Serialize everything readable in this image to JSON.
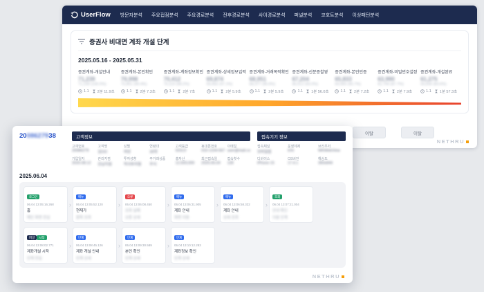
{
  "colors": {
    "navy": "#1d2b4f",
    "accent-blue": "#2450c8",
    "green": "#22a06b",
    "blue": "#2f6bed",
    "red": "#e5484d",
    "orange": "#f59e0b"
  },
  "icons": {
    "chevron_right": "›"
  },
  "app": {
    "logo": "UserFlow",
    "nav": [
      {
        "label": "방문자분석"
      },
      {
        "label": "주요접점분석"
      },
      {
        "label": "주요경로분석"
      },
      {
        "label": "전후경로분석"
      },
      {
        "label": "사이경로분석"
      },
      {
        "label": "퍼널분석"
      },
      {
        "label": "코호트분석"
      },
      {
        "label": "이상패턴분석"
      }
    ]
  },
  "funnel": {
    "title": "증권사 비대면 계좌 개설 단계",
    "date_range": "2025.05.16 - 2025.05.31",
    "gradient": [
      "#ffd84d",
      "#ffa62b",
      "#e8432e"
    ],
    "steps": [
      {
        "label": "증권계좌-개설안내",
        "value": "71,239",
        "sub": "71,239 (100.0%)",
        "avg": "1.1",
        "duration": "2분 11.9초"
      },
      {
        "label": "증권계좌-본인확인",
        "value": "70,998",
        "sub": "70,851 (99.4%)",
        "avg": "1.1",
        "duration": "2분 7.3초"
      },
      {
        "label": "증권계좌-계좌정보확인",
        "value": "70,412",
        "sub": "70,119 (98.2%)",
        "avg": "1.1",
        "duration": "2분 7초"
      },
      {
        "label": "증권계좌-상세정보입력",
        "value": "69,874",
        "sub": "69,402 (97.1%)",
        "avg": "1.1",
        "duration": "2분 5.9초"
      },
      {
        "label": "증권계좌-거래목적확인",
        "value": "68,951",
        "sub": "68,377 (95.6%)",
        "avg": "1.1",
        "duration": "2분 5.9초"
      },
      {
        "label": "증권계좌-신분증촬영",
        "value": "67,204",
        "sub": "66,512 (93.0%)",
        "avg": "1.1",
        "duration": "1분 56.0초"
      },
      {
        "label": "증권계좌-본인인증",
        "value": "65,833",
        "sub": "64,905 (90.7%)",
        "avg": "1.1",
        "duration": "2분 7.2초"
      },
      {
        "label": "증권계좌-비밀번호설정",
        "value": "63,990",
        "sub": "62,744 (87.7%)",
        "avg": "1.1",
        "duration": "2분 7.9초"
      },
      {
        "label": "증권계좌-개설완료",
        "value": "61,275",
        "sub": "59,830 (83.6%)",
        "avg": "1.1",
        "duration": "1분 57.3초"
      }
    ],
    "exit_buttons": [
      "이탈",
      "이탈"
    ],
    "watermark": "NETHRU"
  },
  "detail": {
    "customer_id": {
      "prefix": "20",
      "masked": "086279",
      "suffix": "38"
    },
    "customer": {
      "title": "고객정보",
      "fields": [
        {
          "label": "고객번호",
          "value": "20086279"
        },
        {
          "label": "고객명",
          "value": "김OO"
        },
        {
          "label": "성별",
          "value": "여성"
        },
        {
          "label": "연령대",
          "value": "30대"
        },
        {
          "label": "고객등급",
          "value": "GOLD"
        },
        {
          "label": "휴대폰번호",
          "value": "010-1234-5678"
        },
        {
          "label": "이메일",
          "value": "user@mail.com"
        },
        {
          "label": "가입일자",
          "value": "2020.08.12"
        },
        {
          "label": "관리지점",
          "value": "강남지점"
        },
        {
          "label": "투자성향",
          "value": "적극투자형"
        },
        {
          "label": "주거래상품",
          "value": "주식"
        },
        {
          "label": "총자산",
          "value": "12,500,000"
        },
        {
          "label": "최근접속일",
          "value": "2025.06.04"
        },
        {
          "label": "접속횟수",
          "value": "128"
        }
      ]
    },
    "device": {
      "title": "접속기기 정보",
      "fields": [
        {
          "label": "접속채널",
          "value": "모바일앱"
        },
        {
          "label": "운영체제",
          "value": "iOS"
        },
        {
          "label": "브라우저",
          "value": "WKWebView"
        },
        {
          "label": "디바이스",
          "value": "iPhone 15"
        },
        {
          "label": "OS버전",
          "value": "17.4.1"
        },
        {
          "label": "해상도",
          "value": "390x844"
        }
      ]
    },
    "date": "2025.06.04",
    "timeline": {
      "rows": [
        [
          {
            "badges": [
              {
                "label": "로그인",
                "color": "green"
              }
            ],
            "time": "06.04 13:05:16.268",
            "lines": [
              {
                "text": "홈",
                "blur": false
              },
              {
                "text": "메인 화면 진입",
                "blur": true
              }
            ]
          },
          {
            "badges": [
              {
                "label": "메뉴",
                "color": "blue"
              }
            ],
            "time": "06.04 13:05:52.120",
            "lines": [
              {
                "text": "현재가",
                "blur": false
              },
              {
                "text": "종목 조회",
                "blur": true
              }
            ]
          },
          {
            "badges": [
              {
                "label": "오류",
                "color": "red"
              }
            ],
            "time": "06.04 13:06:08.450",
            "lines": [
              {
                "text": "조회 실패",
                "blur": true
              },
              {
                "text": "오류 상세",
                "blur": true
              }
            ]
          },
          {
            "badges": [
              {
                "label": "메뉴",
                "color": "blue"
              }
            ],
            "time": "06.04 13:06:31.905",
            "lines": [
              {
                "text": "계좌 안내",
                "blur": false
              },
              {
                "text": "화면 이동",
                "blur": true
              }
            ]
          },
          {
            "badges": [
              {
                "label": "메뉴",
                "color": "blue"
              }
            ],
            "time": "06.04 13:06:58.332",
            "lines": [
              {
                "text": "계좌 안내",
                "blur": false
              },
              {
                "text": "상세 조회",
                "blur": true
              }
            ]
          },
          {
            "badges": [
              {
                "label": "조회",
                "color": "green"
              }
            ],
            "time": "06.04 13:07:21.004",
            "lines": [
              {
                "text": "안내 확인",
                "blur": true
              },
              {
                "text": "다음 단계",
                "blur": true
              }
            ]
          }
        ],
        [
          {
            "badges": [
              {
                "label": "퍼널",
                "color": "navy"
              },
              {
                "label": "시작",
                "color": "green"
              }
            ],
            "time": "06.04 13:08:02.771",
            "lines": [
              {
                "text": "계좌개설 시작",
                "blur": false
              },
              {
                "text": "단계 진입",
                "blur": true
              }
            ]
          },
          {
            "badges": [
              {
                "label": "단계",
                "color": "blue"
              }
            ],
            "time": "06.04 13:08:45.126",
            "lines": [
              {
                "text": "계좌 개설 안내",
                "blur": false
              },
              {
                "text": "단계 상세",
                "blur": true
              }
            ]
          },
          {
            "badges": [
              {
                "label": "단계",
                "color": "blue"
              }
            ],
            "time": "06.04 13:09:30.589",
            "lines": [
              {
                "text": "본인 확인",
                "blur": false
              },
              {
                "text": "단계 상세",
                "blur": true
              }
            ]
          },
          {
            "badges": [
              {
                "label": "단계",
                "color": "blue"
              }
            ],
            "time": "06.04 13:10:12.283",
            "lines": [
              {
                "text": "계좌정보 확인",
                "blur": false
              },
              {
                "text": "단계 상세",
                "blur": true
              }
            ]
          }
        ]
      ]
    },
    "watermark": "NETHRU"
  }
}
